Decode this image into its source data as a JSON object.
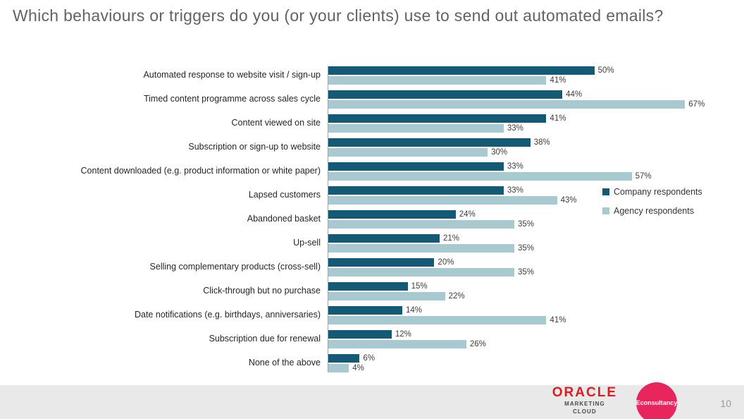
{
  "slide": {
    "title": "Which behaviours or triggers do you (or your clients) use to send out automated emails?",
    "page_number": "10"
  },
  "chart_data": {
    "type": "bar",
    "orientation": "horizontal",
    "title": "Which behaviours or triggers do you (or your clients) use to send out automated emails?",
    "xlabel": "",
    "ylabel": "",
    "xlim": [
      0,
      70
    ],
    "grid": false,
    "legend_position": "right",
    "value_suffix": "%",
    "categories": [
      "Automated response to website visit / sign-up",
      "Timed content programme across sales cycle",
      "Content viewed on site",
      "Subscription or sign-up to website",
      "Content downloaded (e.g. product information or white paper)",
      "Lapsed customers",
      "Abandoned basket",
      "Up-sell",
      "Selling complementary products (cross-sell)",
      "Click-through but no purchase",
      "Date notifications (e.g. birthdays, anniversaries)",
      "Subscription due for renewal",
      "None of the above"
    ],
    "series": [
      {
        "name": "Company respondents",
        "color": "#155a75",
        "values": [
          50,
          44,
          41,
          38,
          33,
          33,
          24,
          21,
          20,
          15,
          14,
          12,
          6
        ]
      },
      {
        "name": "Agency respondents",
        "color": "#a9c9d1",
        "values": [
          41,
          67,
          33,
          30,
          57,
          43,
          35,
          35,
          35,
          22,
          41,
          26,
          4
        ]
      }
    ]
  },
  "footer": {
    "oracle_logo": "ORACLE",
    "oracle_sub": "MARKETING\nCLOUD",
    "econsultancy_logo": "Econsultancy"
  }
}
